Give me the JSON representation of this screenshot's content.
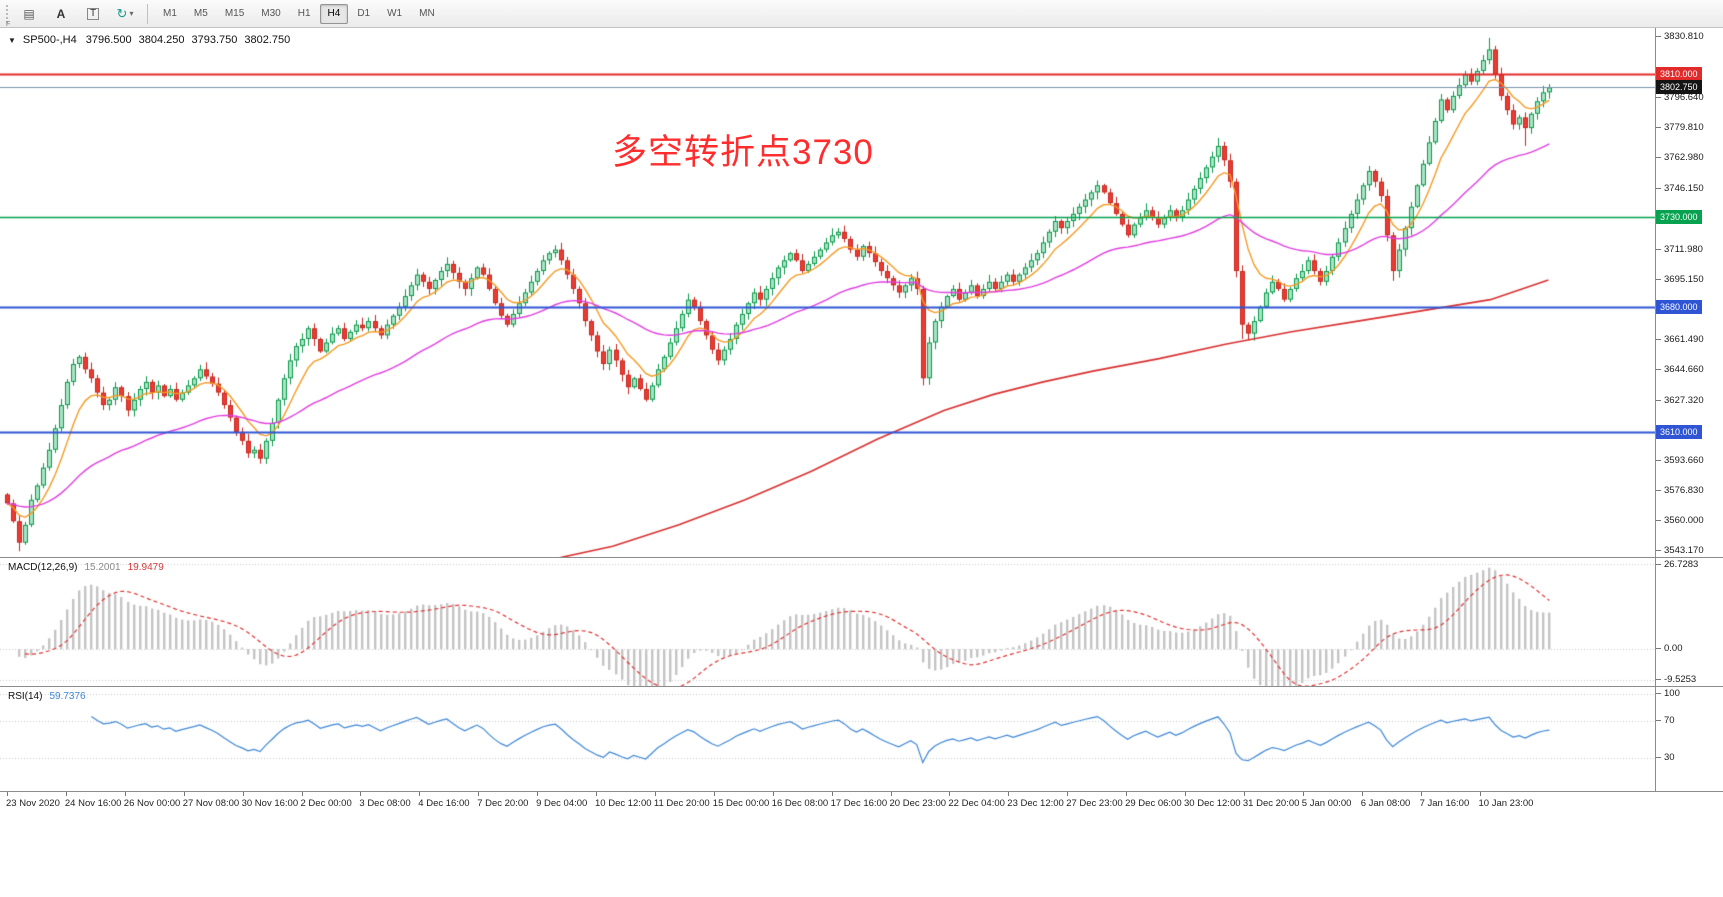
{
  "toolbar": {
    "grip_label": "F",
    "icons": [
      {
        "name": "list-icon",
        "glyph": "▤"
      },
      {
        "name": "text-tool-icon",
        "glyph": "A"
      },
      {
        "name": "template-tool-icon",
        "glyph": "T"
      },
      {
        "name": "cycle-arrows-icon",
        "glyph": "↻"
      },
      {
        "name": "chevron-down-icon",
        "glyph": "▾"
      }
    ],
    "timeframes": [
      "M1",
      "M5",
      "M15",
      "M30",
      "H1",
      "H4",
      "D1",
      "W1",
      "MN"
    ],
    "active_timeframe": "H4"
  },
  "chart": {
    "title": {
      "marker_glyph": "▼",
      "symbol_period": "SP500-,H4",
      "open": "3796.500",
      "high": "3804.250",
      "low": "3793.750",
      "close": "3802.750"
    },
    "annotation": {
      "text": "多空转折点3730",
      "color": "#ff2d2d"
    },
    "scale": {
      "min": 3540,
      "max": 3836
    },
    "y_ticks": [
      {
        "label": "3830.810",
        "value": 3830.81
      },
      {
        "label": "3796.640",
        "value": 3796.64
      },
      {
        "label": "3779.810",
        "value": 3779.81
      },
      {
        "label": "3762.980",
        "value": 3762.98
      },
      {
        "label": "3746.150",
        "value": 3746.15
      },
      {
        "label": "3711.980",
        "value": 3711.98
      },
      {
        "label": "3695.150",
        "value": 3695.15
      },
      {
        "label": "3661.490",
        "value": 3661.49
      },
      {
        "label": "3644.660",
        "value": 3644.66
      },
      {
        "label": "3627.320",
        "value": 3627.32
      },
      {
        "label": "3593.660",
        "value": 3593.66
      },
      {
        "label": "3576.830",
        "value": 3576.83
      },
      {
        "label": "3560.000",
        "value": 3560.0
      },
      {
        "label": "3543.170",
        "value": 3543.17
      }
    ],
    "price_markers": [
      {
        "label": "3810.000",
        "value": 3810.0,
        "chip_color": "#e12b2b",
        "line_color": "#e12b2b",
        "line_width": 2
      },
      {
        "label": "3802.750",
        "value": 3802.75,
        "chip_color": "#141414",
        "line_color": "#7a93ad",
        "line_width": 1
      },
      {
        "label": "3730.000",
        "value": 3730.0,
        "chip_color": "#07a24f",
        "line_color": "#07a24f",
        "line_width": 1.5
      },
      {
        "label": "3680.000",
        "value": 3680.0,
        "chip_color": "#2f55d4",
        "line_color": "#2f55d4",
        "line_width": 2
      },
      {
        "label": "3610.000",
        "value": 3610.0,
        "chip_color": "#2f55d4",
        "line_color": "#2f55d4",
        "line_width": 2
      }
    ],
    "colors": {
      "up_border": "#0a9a4a",
      "up_fill": "#a8e3c4",
      "down_border": "#c8271f",
      "down_fill": "#ea3c33",
      "background": "#ffffff"
    }
  },
  "chart_data": {
    "type": "candlestick",
    "symbol": "SP500-",
    "timeframe": "H4",
    "candles": {
      "first_open": 3575,
      "width_fraction": 0.935,
      "closes": [
        3570,
        3560,
        3548,
        3558,
        3572,
        3580,
        3590,
        3600,
        3612,
        3625,
        3638,
        3648,
        3652,
        3645,
        3640,
        3632,
        3625,
        3628,
        3635,
        3630,
        3622,
        3628,
        3634,
        3638,
        3632,
        3636,
        3630,
        3634,
        3628,
        3632,
        3636,
        3640,
        3645,
        3641,
        3637,
        3632,
        3625,
        3618,
        3610,
        3605,
        3598,
        3600,
        3595,
        3605,
        3615,
        3628,
        3640,
        3650,
        3658,
        3662,
        3668,
        3662,
        3655,
        3660,
        3665,
        3668,
        3662,
        3666,
        3670,
        3668,
        3672,
        3668,
        3664,
        3670,
        3675,
        3680,
        3686,
        3692,
        3698,
        3694,
        3690,
        3695,
        3700,
        3704,
        3699,
        3694,
        3690,
        3696,
        3702,
        3698,
        3690,
        3682,
        3675,
        3670,
        3676,
        3682,
        3688,
        3694,
        3700,
        3706,
        3710,
        3712,
        3706,
        3698,
        3690,
        3682,
        3672,
        3664,
        3655,
        3648,
        3656,
        3650,
        3642,
        3635,
        3640,
        3634,
        3628,
        3636,
        3645,
        3652,
        3660,
        3668,
        3676,
        3684,
        3680,
        3672,
        3664,
        3656,
        3650,
        3656,
        3662,
        3670,
        3676,
        3682,
        3688,
        3684,
        3690,
        3696,
        3702,
        3706,
        3710,
        3706,
        3700,
        3704,
        3708,
        3712,
        3716,
        3720,
        3722,
        3718,
        3712,
        3708,
        3714,
        3710,
        3705,
        3700,
        3696,
        3692,
        3688,
        3692,
        3696,
        3690,
        3640,
        3660,
        3672,
        3680,
        3686,
        3690,
        3684,
        3688,
        3692,
        3686,
        3690,
        3694,
        3690,
        3694,
        3698,
        3694,
        3698,
        3702,
        3706,
        3710,
        3716,
        3722,
        3728,
        3724,
        3728,
        3732,
        3736,
        3740,
        3744,
        3748,
        3744,
        3738,
        3732,
        3726,
        3720,
        3726,
        3730,
        3734,
        3730,
        3726,
        3730,
        3734,
        3730,
        3734,
        3740,
        3746,
        3752,
        3758,
        3764,
        3770,
        3762,
        3750,
        3700,
        3670,
        3665,
        3672,
        3680,
        3688,
        3694,
        3690,
        3684,
        3690,
        3696,
        3700,
        3706,
        3700,
        3694,
        3700,
        3708,
        3716,
        3724,
        3732,
        3740,
        3748,
        3756,
        3750,
        3742,
        3720,
        3700,
        3712,
        3724,
        3736,
        3748,
        3760,
        3772,
        3784,
        3796,
        3790,
        3798,
        3804,
        3810,
        3806,
        3812,
        3818,
        3824,
        3810,
        3798,
        3790,
        3782,
        3786,
        3780,
        3788,
        3795,
        3800,
        3802.75
      ],
      "high_overrides": {
        "201": 3774.5,
        "246": 3830.5,
        "247": 3826
      },
      "low_overrides": {
        "2": 3543.2,
        "152": 3636,
        "205": 3662,
        "230": 3694.5,
        "252": 3770
      }
    },
    "moving_averages": [
      {
        "name": "ma-fast",
        "type": "ema",
        "period": 8,
        "color": "#f59a23"
      },
      {
        "name": "ma-medium",
        "type": "ema",
        "period": 40,
        "color": "#e13ee1"
      }
    ],
    "slow_ma": {
      "name": "ma-slow",
      "color": "#d93030",
      "points": [
        [
          0.33,
          3538
        ],
        [
          0.37,
          3546
        ],
        [
          0.41,
          3558
        ],
        [
          0.45,
          3572
        ],
        [
          0.49,
          3588
        ],
        [
          0.53,
          3606
        ],
        [
          0.57,
          3622
        ],
        [
          0.6,
          3631
        ],
        [
          0.63,
          3638
        ],
        [
          0.66,
          3644
        ],
        [
          0.7,
          3651
        ],
        [
          0.74,
          3659
        ],
        [
          0.78,
          3666
        ],
        [
          0.82,
          3672
        ],
        [
          0.86,
          3678
        ],
        [
          0.9,
          3684
        ],
        [
          0.935,
          3695
        ]
      ]
    }
  },
  "macd": {
    "title": "MACD(12,26,9)",
    "value_main": "15.2001",
    "value_signal": "19.9479",
    "periods": [
      12,
      26,
      9
    ],
    "scale": {
      "min": -11.5,
      "max": 28.5
    },
    "axis_labels": [
      {
        "label": "26.7283",
        "value": 26.7283
      },
      {
        "label": "0.00",
        "value": 0
      },
      {
        "label": "-9.5253",
        "value": -9.5253
      }
    ],
    "histogram_color": "#c4c4c4",
    "signal_color": "#e23636"
  },
  "rsi": {
    "title": "RSI(14)",
    "value": "59.7376",
    "period": 14,
    "scale": {
      "min": -7,
      "max": 108
    },
    "axis_labels": [
      {
        "label": "100",
        "value": 100
      },
      {
        "label": "70",
        "value": 70
      },
      {
        "label": "30",
        "value": 30
      }
    ],
    "line_color": "#3f87d6"
  },
  "time_axis": {
    "labels": [
      "23 Nov 2020",
      "24 Nov 16:00",
      "26 Nov 00:00",
      "27 Nov 08:00",
      "30 Nov 16:00",
      "2 Dec 00:00",
      "3 Dec 08:00",
      "4 Dec 16:00",
      "7 Dec 20:00",
      "9 Dec 04:00",
      "10 Dec 12:00",
      "11 Dec 20:00",
      "15 Dec 00:00",
      "16 Dec 08:00",
      "17 Dec 16:00",
      "20 Dec 23:00",
      "22 Dec 04:00",
      "23 Dec 12:00",
      "27 Dec 23:00",
      "29 Dec 06:00",
      "30 Dec 12:00",
      "31 Dec 20:00",
      "5 Jan 00:00",
      "6 Jan 08:00",
      "7 Jan 16:00",
      "10 Jan 23:00"
    ]
  }
}
